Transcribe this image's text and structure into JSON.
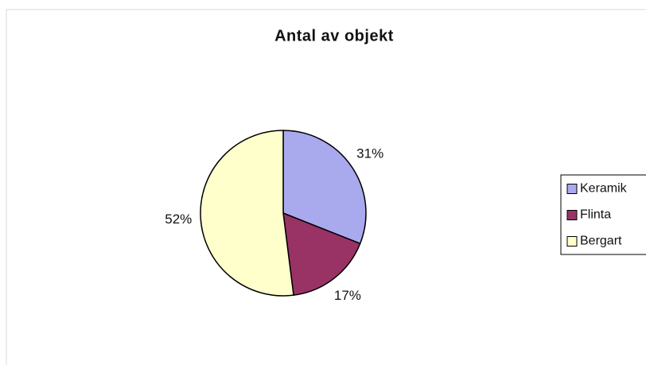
{
  "chart_data": {
    "type": "pie",
    "title": "Antal av objekt",
    "categories": [
      "Keramik",
      "Flinta",
      "Bergart"
    ],
    "values": [
      31,
      17,
      52
    ],
    "value_labels": [
      "31%",
      "17%",
      "52%"
    ],
    "colors": [
      "#a9a9ee",
      "#993366",
      "#ffffcc"
    ],
    "legend": "right"
  }
}
